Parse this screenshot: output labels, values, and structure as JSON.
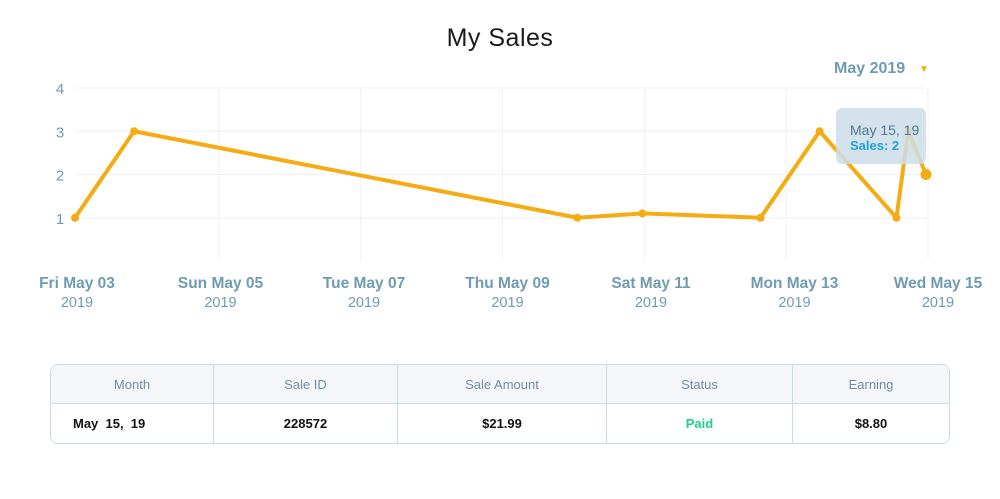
{
  "header": {
    "title": "My Sales",
    "period_label": "May 2019",
    "period_icon": "chevron-down-icon"
  },
  "colors": {
    "line": "#f5ac12",
    "axis_text": "#6f9bb3",
    "grid": "#eef2f5",
    "paid": "#1fcf8f"
  },
  "chart_data": {
    "type": "line",
    "x_ticks": [
      {
        "day": "Fri May 03",
        "year": "2019"
      },
      {
        "day": "Sun May 05",
        "year": "2019"
      },
      {
        "day": "Tue May 07",
        "year": "2019"
      },
      {
        "day": "Thu May 09",
        "year": "2019"
      },
      {
        "day": "Sat May 11",
        "year": "2019"
      },
      {
        "day": "Mon May 13",
        "year": "2019"
      },
      {
        "day": "Wed May 15",
        "year": "2019"
      }
    ],
    "y_ticks": [
      "1",
      "2",
      "3",
      "4"
    ],
    "ylim": [
      0,
      4
    ],
    "xlim": [
      "2019-05-03",
      "2019-05-15"
    ],
    "series": [
      {
        "points": [
          {
            "x": "2019-05-03",
            "y": 1
          },
          {
            "x": "2019-05-03 20:00",
            "y": 3
          },
          {
            "x": "2019-05-10 02:00",
            "y": 1
          },
          {
            "x": "2019-05-11 00:00",
            "y": 1.1
          },
          {
            "x": "2019-05-12 16:00",
            "y": 1
          },
          {
            "x": "2019-05-13 12:00",
            "y": 3
          },
          {
            "x": "2019-05-14 14:00",
            "y": 1
          },
          {
            "x": "2019-05-14 18:00",
            "y": 3
          },
          {
            "x": "2019-05-15",
            "y": 2
          }
        ]
      }
    ],
    "tooltip": {
      "date": "May 15, 19",
      "value_text": "Sales: 2"
    },
    "grid": true
  },
  "table": {
    "columns": [
      "Month",
      "Sale ID",
      "Sale Amount",
      "Status",
      "Earning"
    ],
    "rows": [
      {
        "month": "May  15,  19",
        "sale_id": "228572",
        "amount": "$21.99",
        "status": "Paid",
        "earning": "$8.80"
      }
    ]
  }
}
